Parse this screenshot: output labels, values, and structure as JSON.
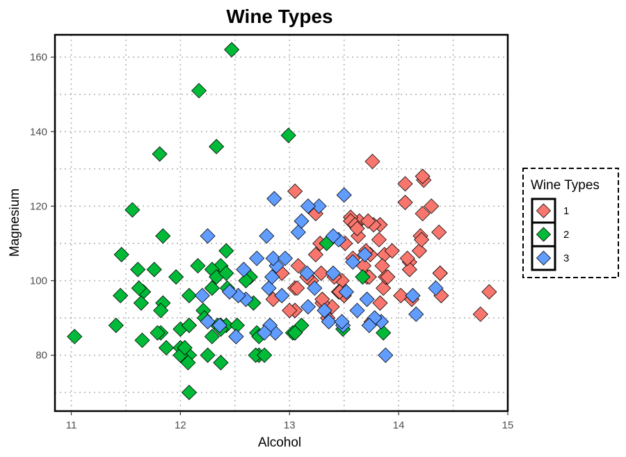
{
  "chart_data": {
    "type": "scatter",
    "title": "Wine Types",
    "xlabel": "Alcohol",
    "ylabel": "Magnesium",
    "xlim": [
      10.85,
      15.0
    ],
    "ylim": [
      65,
      166
    ],
    "x_ticks": [
      11,
      12,
      13,
      14,
      15
    ],
    "y_ticks": [
      80,
      100,
      120,
      140,
      160
    ],
    "x_tick_labels": [
      "11",
      "12",
      "13",
      "14",
      "15"
    ],
    "y_tick_labels": [
      "80",
      "100",
      "120",
      "140",
      "160"
    ],
    "grid": true,
    "marker": "diamond",
    "legend": {
      "title": "Wine Types",
      "placement": "right",
      "entries": [
        "1",
        "2",
        "3"
      ]
    },
    "series": [
      {
        "name": "1",
        "color": "#F8766D",
        "points": [
          [
            14.23,
            127
          ],
          [
            13.2,
            100
          ],
          [
            13.16,
            101
          ],
          [
            14.37,
            113
          ],
          [
            13.24,
            118
          ],
          [
            14.2,
            112
          ],
          [
            14.39,
            96
          ],
          [
            14.06,
            121
          ],
          [
            14.83,
            97
          ],
          [
            13.86,
            98
          ],
          [
            14.1,
            105
          ],
          [
            14.12,
            95
          ],
          [
            13.75,
            89
          ],
          [
            14.75,
            91
          ],
          [
            14.38,
            102
          ],
          [
            13.63,
            112
          ],
          [
            14.3,
            120
          ],
          [
            13.83,
            115
          ],
          [
            14.19,
            108
          ],
          [
            13.64,
            116
          ],
          [
            14.06,
            126
          ],
          [
            12.93,
            102
          ],
          [
            13.71,
            101
          ],
          [
            12.85,
            95
          ],
          [
            13.5,
            96
          ],
          [
            13.05,
            124
          ],
          [
            13.39,
            93
          ],
          [
            13.3,
            94
          ],
          [
            13.87,
            107
          ],
          [
            14.02,
            96
          ],
          [
            13.73,
            101
          ],
          [
            13.58,
            106
          ],
          [
            13.68,
            104
          ],
          [
            13.76,
            132
          ],
          [
            13.51,
            110
          ],
          [
            13.48,
            100
          ],
          [
            13.28,
            110
          ],
          [
            13.05,
            98
          ],
          [
            13.07,
            98
          ],
          [
            14.22,
            128
          ],
          [
            13.56,
            117
          ],
          [
            13.41,
            101
          ],
          [
            13.88,
            101
          ],
          [
            13.24,
            107
          ],
          [
            13.05,
            92
          ],
          [
            14.21,
            111
          ],
          [
            14.38,
            102
          ],
          [
            13.9,
            101
          ],
          [
            14.1,
            103
          ],
          [
            13.94,
            108
          ],
          [
            13.05,
            92
          ],
          [
            13.83,
            94
          ],
          [
            13.82,
            111
          ],
          [
            13.77,
            115
          ],
          [
            13.74,
            107
          ],
          [
            13.56,
            116
          ],
          [
            14.22,
            118
          ],
          [
            13.29,
            102
          ],
          [
            13.72,
            116
          ],
          [
            13.6,
            115
          ],
          [
            13.0,
            92
          ],
          [
            13.45,
            97
          ],
          [
            13.3,
            95
          ],
          [
            14.08,
            106
          ],
          [
            13.62,
            114
          ],
          [
            13.35,
            90
          ],
          [
            13.7,
            108
          ],
          [
            13.85,
            104
          ],
          [
            13.46,
            97
          ],
          [
            13.08,
            104
          ]
        ]
      },
      {
        "name": "2",
        "color": "#00BA38",
        "points": [
          [
            12.37,
            104
          ],
          [
            12.33,
            136
          ],
          [
            12.64,
            101
          ],
          [
            13.67,
            101
          ],
          [
            12.37,
            78
          ],
          [
            12.17,
            151
          ],
          [
            12.37,
            78
          ],
          [
            13.11,
            88
          ],
          [
            13.34,
            110
          ],
          [
            12.21,
            92
          ],
          [
            12.29,
            103
          ],
          [
            13.86,
            86
          ],
          [
            13.49,
            87
          ],
          [
            12.99,
            139
          ],
          [
            11.96,
            101
          ],
          [
            11.66,
            97
          ],
          [
            13.03,
            86
          ],
          [
            11.84,
            112
          ],
          [
            12.33,
            101
          ],
          [
            12.7,
            86
          ],
          [
            12.0,
            87
          ],
          [
            12.72,
            80
          ],
          [
            12.08,
            96
          ],
          [
            13.05,
            86
          ],
          [
            11.84,
            94
          ],
          [
            12.67,
            94
          ],
          [
            12.16,
            104
          ],
          [
            11.65,
            84
          ],
          [
            11.64,
            94
          ],
          [
            12.08,
            70
          ],
          [
            12.08,
            88
          ],
          [
            12.0,
            82
          ],
          [
            12.69,
            80
          ],
          [
            12.29,
            98
          ],
          [
            11.62,
            98
          ],
          [
            12.47,
            162
          ],
          [
            11.81,
            134
          ],
          [
            12.29,
            85
          ],
          [
            12.37,
            88
          ],
          [
            12.29,
            98
          ],
          [
            12.08,
            88
          ],
          [
            12.6,
            100
          ],
          [
            12.34,
            88
          ],
          [
            11.82,
            86
          ],
          [
            12.51,
            85
          ],
          [
            12.42,
            88
          ],
          [
            12.25,
            80
          ],
          [
            12.72,
            85
          ],
          [
            12.22,
            90
          ],
          [
            11.61,
            103
          ],
          [
            11.46,
            107
          ],
          [
            12.52,
            88
          ],
          [
            11.76,
            103
          ],
          [
            11.41,
            88
          ],
          [
            12.08,
            80
          ],
          [
            11.03,
            85
          ],
          [
            11.82,
            92
          ],
          [
            12.42,
            108
          ],
          [
            12.77,
            80
          ],
          [
            12.0,
            80
          ],
          [
            11.45,
            96
          ],
          [
            11.56,
            119
          ],
          [
            12.42,
            102
          ],
          [
            13.05,
            86
          ],
          [
            11.87,
            82
          ],
          [
            12.07,
            78
          ],
          [
            12.43,
            98
          ],
          [
            11.79,
            86
          ],
          [
            12.37,
            87
          ],
          [
            12.04,
            82
          ]
        ]
      },
      {
        "name": "3",
        "color": "#619CFF",
        "points": [
          [
            12.86,
            122
          ],
          [
            12.88,
            104
          ],
          [
            12.81,
            98
          ],
          [
            12.7,
            106
          ],
          [
            12.51,
            85
          ],
          [
            12.6,
            95
          ],
          [
            12.25,
            89
          ],
          [
            12.53,
            96
          ],
          [
            13.49,
            88
          ],
          [
            12.84,
            101
          ],
          [
            12.93,
            96
          ],
          [
            13.36,
            89
          ],
          [
            13.52,
            97
          ],
          [
            13.62,
            92
          ],
          [
            12.25,
            112
          ],
          [
            13.16,
            102
          ],
          [
            13.88,
            80
          ],
          [
            12.87,
            86
          ],
          [
            13.32,
            92
          ],
          [
            13.08,
            113
          ],
          [
            13.5,
            123
          ],
          [
            12.79,
            112
          ],
          [
            13.11,
            116
          ],
          [
            13.23,
            98
          ],
          [
            12.58,
            103
          ],
          [
            13.17,
            93
          ],
          [
            13.84,
            89
          ],
          [
            12.45,
            97
          ],
          [
            14.34,
            98
          ],
          [
            13.48,
            89
          ],
          [
            12.36,
            88
          ],
          [
            13.69,
            107
          ],
          [
            12.85,
            106
          ],
          [
            12.96,
            106
          ],
          [
            13.78,
            90
          ],
          [
            13.73,
            88
          ],
          [
            13.45,
            111
          ],
          [
            12.82,
            88
          ],
          [
            13.58,
            105
          ],
          [
            13.4,
            112
          ],
          [
            12.2,
            96
          ],
          [
            12.77,
            86
          ],
          [
            14.16,
            91
          ],
          [
            13.71,
            95
          ],
          [
            13.4,
            102
          ],
          [
            13.27,
            120
          ],
          [
            13.17,
            120
          ],
          [
            14.13,
            96
          ]
        ]
      }
    ]
  }
}
